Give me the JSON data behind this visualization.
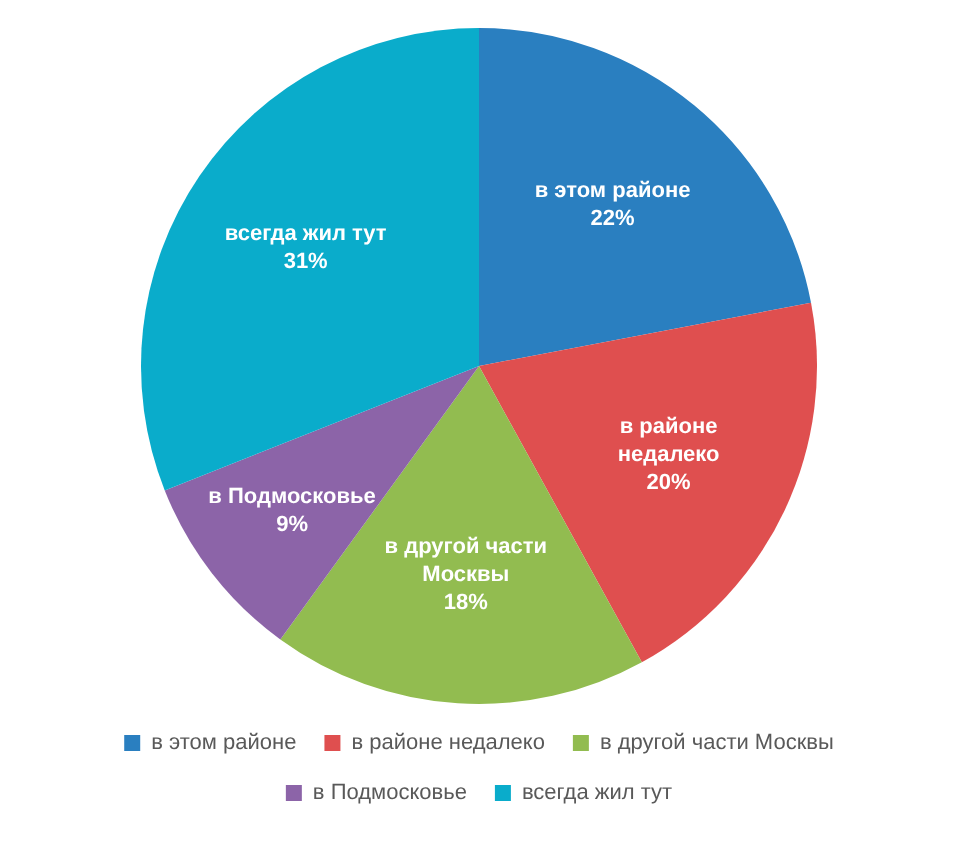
{
  "chart_data": {
    "type": "pie",
    "categories": [
      "в этом районе",
      "в районе недалеко",
      "в другой части Москвы",
      "в Подмосковье",
      "всегда жил тут"
    ],
    "values": [
      22,
      20,
      18,
      9,
      31
    ],
    "colors": [
      "#2a7fc0",
      "#df4f4f",
      "#92bc50",
      "#8c64a8",
      "#0aaccb"
    ],
    "value_labels": [
      "22%",
      "20%",
      "18%",
      "9%",
      "31%"
    ],
    "legend": "bottom"
  }
}
